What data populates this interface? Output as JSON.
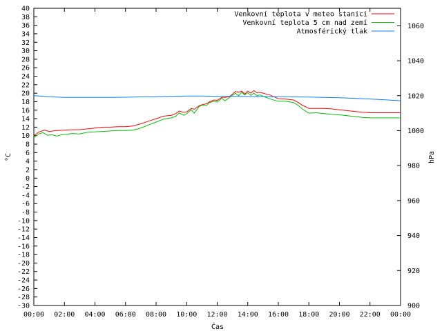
{
  "chart_data": {
    "type": "line",
    "xlabel": "Čas",
    "ylabel_left": "°C",
    "ylabel_right": "hPa",
    "x_ticks": [
      "00:00",
      "02:00",
      "04:00",
      "06:00",
      "08:00",
      "10:00",
      "12:00",
      "14:00",
      "16:00",
      "18:00",
      "20:00",
      "22:00",
      "00:00"
    ],
    "y_left_range": [
      -30,
      40
    ],
    "y_left_ticks": [
      -30,
      -28,
      -26,
      -24,
      -22,
      -20,
      -18,
      -16,
      -14,
      -12,
      -10,
      -8,
      -6,
      -4,
      -2,
      0,
      2,
      4,
      6,
      8,
      10,
      12,
      14,
      16,
      18,
      20,
      22,
      24,
      26,
      28,
      30,
      32,
      34,
      36,
      38,
      40
    ],
    "y_right_range": [
      900,
      1070
    ],
    "y_right_ticks": [
      900,
      920,
      940,
      960,
      980,
      1000,
      1020,
      1040,
      1060
    ],
    "legend_position": "top-right",
    "grid": false,
    "series": [
      {
        "name": "Venkovní teplota v meteo stanici",
        "color": "#ff0000",
        "axis": "left",
        "x": [
          0,
          0.3,
          0.7,
          1,
          1.5,
          2,
          2.5,
          3,
          3.5,
          4,
          4.5,
          5,
          5.5,
          6,
          6.5,
          7,
          7.5,
          8,
          8.5,
          9,
          9.3,
          9.5,
          9.8,
          10,
          10.3,
          10.5,
          10.8,
          11,
          11.3,
          11.5,
          11.8,
          12,
          12.3,
          12.5,
          12.8,
          13,
          13.2,
          13.4,
          13.6,
          13.8,
          14,
          14.2,
          14.4,
          14.6,
          14.8,
          15,
          15.5,
          16,
          16.5,
          17,
          17.3,
          17.6,
          17.9,
          18,
          18.5,
          19,
          19.5,
          20,
          20.5,
          21,
          21.5,
          22,
          22.5,
          23,
          23.5,
          24
        ],
        "values": [
          10.0,
          10.8,
          11.3,
          11.0,
          11.2,
          11.3,
          11.4,
          11.4,
          11.6,
          11.8,
          12.0,
          12.0,
          12.1,
          12.1,
          12.3,
          12.8,
          13.4,
          14.0,
          14.6,
          14.8,
          15.2,
          15.8,
          15.5,
          15.6,
          16.4,
          16.2,
          17.0,
          17.3,
          17.5,
          18.0,
          18.4,
          18.3,
          19.0,
          19.0,
          19.2,
          19.8,
          20.4,
          20.2,
          20.5,
          19.8,
          20.5,
          20.0,
          20.6,
          20.1,
          20.2,
          20.0,
          19.5,
          18.7,
          18.6,
          18.4,
          17.8,
          17.1,
          16.6,
          16.4,
          16.4,
          16.4,
          16.3,
          16.1,
          15.9,
          15.7,
          15.5,
          15.4,
          15.4,
          15.4,
          15.4,
          15.4
        ]
      },
      {
        "name": "Venkovní teplota 5 cm nad zemí",
        "color": "#00c000",
        "axis": "left",
        "x": [
          0,
          0.3,
          0.6,
          0.9,
          1.2,
          1.5,
          1.8,
          2.1,
          2.5,
          3,
          3.5,
          4,
          4.5,
          5,
          5.5,
          6,
          6.5,
          7,
          7.5,
          8,
          8.5,
          9,
          9.3,
          9.5,
          9.8,
          10,
          10.3,
          10.5,
          10.8,
          11,
          11.3,
          11.5,
          11.8,
          12,
          12.3,
          12.5,
          12.8,
          13,
          13.2,
          13.4,
          13.6,
          13.8,
          14,
          14.2,
          14.4,
          14.6,
          14.8,
          15,
          15.5,
          16,
          16.5,
          17,
          17.3,
          17.6,
          17.9,
          18,
          18.5,
          19,
          19.5,
          20,
          20.5,
          21,
          21.5,
          22,
          22.5,
          23,
          23.5,
          24
        ],
        "values": [
          9.5,
          10.4,
          10.7,
          10.1,
          10.2,
          9.9,
          10.2,
          10.3,
          10.5,
          10.4,
          10.8,
          10.9,
          11.0,
          11.1,
          11.2,
          11.2,
          11.3,
          11.8,
          12.5,
          13.2,
          13.9,
          14.2,
          14.6,
          15.4,
          14.8,
          15.2,
          16.1,
          15.3,
          16.8,
          17.2,
          17.1,
          17.8,
          18.1,
          17.9,
          18.8,
          18.2,
          19.0,
          19.5,
          20.0,
          19.4,
          20.2,
          19.6,
          20.1,
          19.5,
          20.0,
          19.4,
          19.6,
          19.3,
          18.6,
          18.1,
          18.1,
          17.8,
          17.1,
          16.2,
          15.5,
          15.3,
          15.4,
          15.2,
          15.0,
          14.9,
          14.7,
          14.5,
          14.3,
          14.2,
          14.2,
          14.2,
          14.2,
          14.2
        ]
      },
      {
        "name": "Atmosférický tlak",
        "color": "#0080ff",
        "axis": "right",
        "x": [
          0,
          1,
          2,
          3,
          4,
          5,
          6,
          7,
          8,
          9,
          10,
          11,
          12,
          13,
          14,
          15,
          16,
          17,
          18,
          19,
          20,
          21,
          22,
          23,
          24
        ],
        "values": [
          1020.0,
          1019.4,
          1019.0,
          1019.0,
          1019.0,
          1019.0,
          1019.1,
          1019.3,
          1019.4,
          1019.6,
          1019.8,
          1019.8,
          1019.6,
          1019.6,
          1019.5,
          1019.5,
          1019.4,
          1019.3,
          1019.2,
          1019.0,
          1018.8,
          1018.5,
          1018.1,
          1017.6,
          1017.1
        ]
      }
    ]
  }
}
